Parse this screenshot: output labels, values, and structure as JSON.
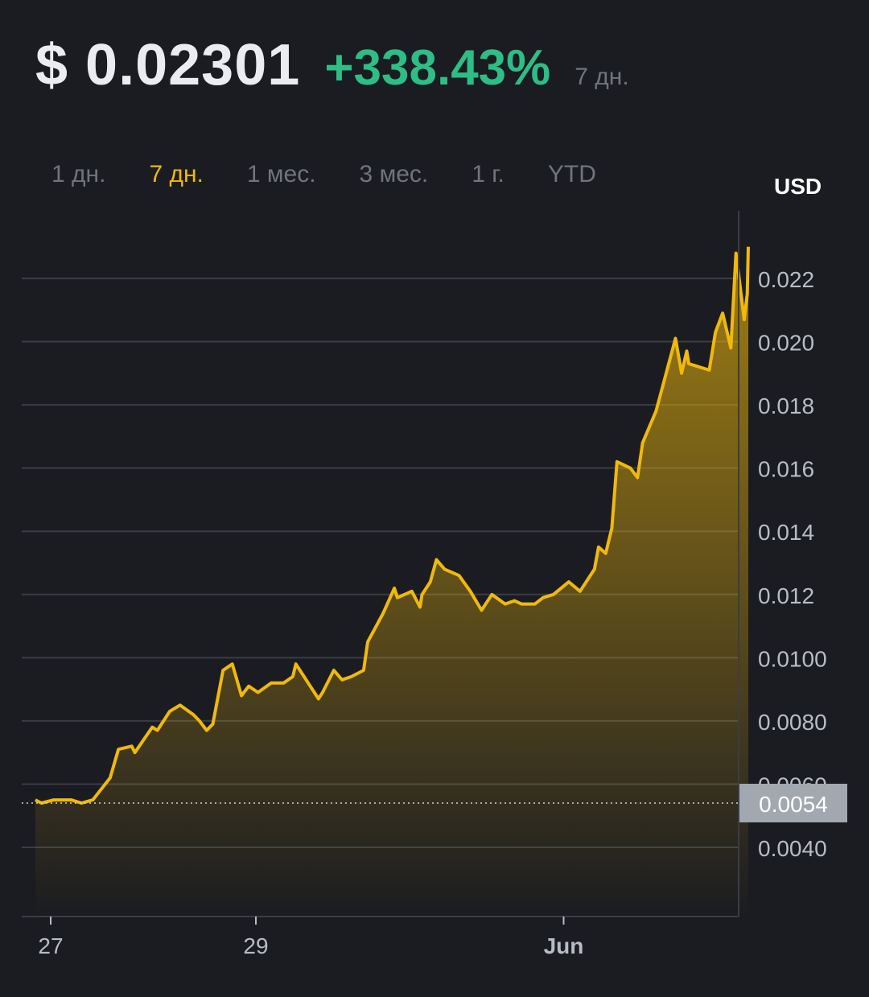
{
  "header": {
    "price": "$ 0.02301",
    "change": "+338.43%",
    "period": "7 дн."
  },
  "tabs": [
    {
      "label": "1 дн.",
      "active": false
    },
    {
      "label": "7 дн.",
      "active": true
    },
    {
      "label": "1 мес.",
      "active": false
    },
    {
      "label": "3 мес.",
      "active": false
    },
    {
      "label": "1 г.",
      "active": false
    },
    {
      "label": "YTD",
      "active": false
    }
  ],
  "currency_label": "USD",
  "colors": {
    "background": "#1b1c21",
    "line": "#f0b90b",
    "positive": "#2ebd85",
    "grid": "#3a3d45",
    "axis_text": "#b7bdc6",
    "current_badge": "#a2a8b0"
  },
  "chart_data": {
    "type": "area",
    "xlabel": "",
    "ylabel": "USD",
    "ylim": [
      0.0019,
      0.0243
    ],
    "xlim": [
      -0.15,
      6.85
    ],
    "grid": true,
    "y_ticks": [
      0.004,
      0.006,
      0.008,
      0.01,
      0.012,
      0.014,
      0.016,
      0.018,
      0.02,
      0.022
    ],
    "y_tick_labels": [
      "0.0040",
      "0.0060",
      "0.0080",
      "0.0100",
      "0.012",
      "0.014",
      "0.016",
      "0.018",
      "0.020",
      "0.022"
    ],
    "x_ticks": [
      0,
      2,
      5
    ],
    "x_tick_labels": [
      "27",
      "29",
      "Jun"
    ],
    "current_value": 0.0054,
    "current_value_label": "0.0054",
    "series": [
      {
        "x": [
          -0.15,
          -0.09,
          0.03,
          0.2,
          0.3,
          0.41,
          0.58,
          0.66,
          0.79,
          0.82,
          0.99,
          1.04,
          1.16,
          1.26,
          1.39,
          1.45,
          1.52,
          1.58,
          1.68,
          1.77,
          1.86,
          1.93,
          2.02,
          2.15,
          2.27,
          2.36,
          2.39,
          2.47,
          2.61,
          2.65,
          2.76,
          2.84,
          2.93,
          3.05,
          3.09,
          3.24,
          3.35,
          3.38,
          3.52,
          3.6,
          3.62,
          3.7,
          3.76,
          3.84,
          3.98,
          4.09,
          4.2,
          4.3,
          4.43,
          4.52,
          4.59,
          4.72,
          4.8,
          4.9,
          5.05,
          5.16,
          5.3,
          5.34,
          5.41,
          5.47,
          5.52,
          5.65,
          5.72,
          5.77,
          5.9,
          6.09,
          6.15,
          6.2,
          6.22,
          6.42,
          6.48,
          6.55,
          6.63,
          6.68,
          6.76,
          6.79,
          6.8
        ],
        "values": [
          0.0055,
          0.0054,
          0.0055,
          0.0055,
          0.0054,
          0.0055,
          0.0062,
          0.0071,
          0.0072,
          0.007,
          0.0078,
          0.0077,
          0.0083,
          0.0085,
          0.0082,
          0.008,
          0.0077,
          0.0079,
          0.0096,
          0.0098,
          0.0088,
          0.0091,
          0.0089,
          0.0092,
          0.0092,
          0.0094,
          0.0098,
          0.0094,
          0.0087,
          0.0089,
          0.0096,
          0.0093,
          0.0094,
          0.0096,
          0.0105,
          0.0114,
          0.0122,
          0.0119,
          0.0121,
          0.0116,
          0.012,
          0.0124,
          0.0131,
          0.0128,
          0.0126,
          0.0121,
          0.0115,
          0.012,
          0.0117,
          0.0118,
          0.0117,
          0.0117,
          0.0119,
          0.012,
          0.0124,
          0.0121,
          0.0128,
          0.0135,
          0.0133,
          0.0141,
          0.0162,
          0.016,
          0.0157,
          0.0168,
          0.0178,
          0.0201,
          0.019,
          0.0197,
          0.0193,
          0.0191,
          0.0203,
          0.0209,
          0.0198,
          0.0228,
          0.0207,
          0.0215,
          0.023
        ]
      }
    ]
  }
}
